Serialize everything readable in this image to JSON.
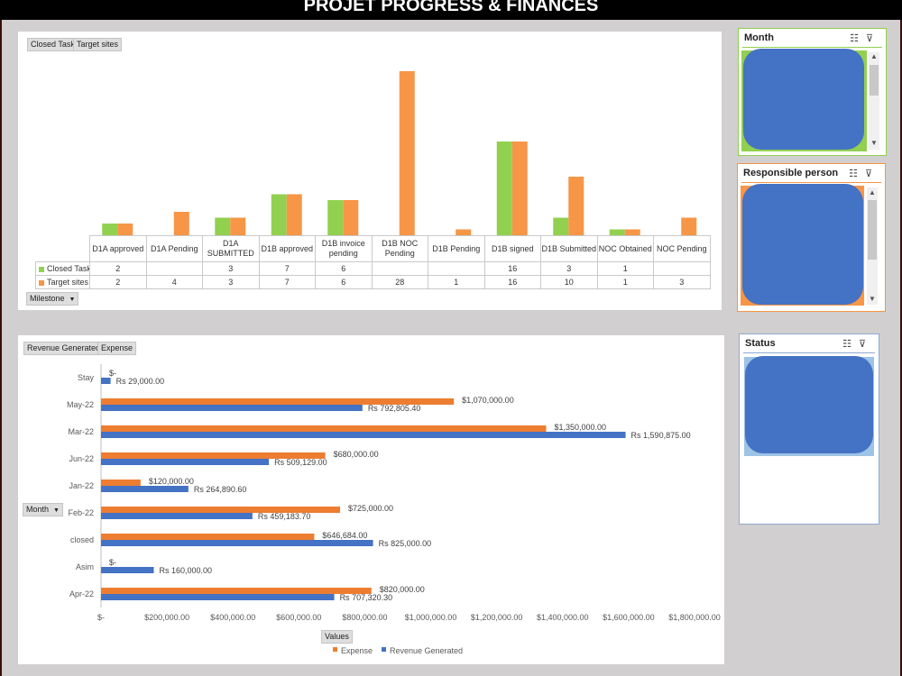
{
  "title": "PROJET PROGRESS & FINANCES",
  "colors": {
    "closed": "#92d050",
    "target": "#f79646",
    "expense": "#ed7d31",
    "revenue": "#4472c4",
    "slicer_item": "#4472c4"
  },
  "top_panel": {
    "field_buttons": [
      "Closed Task",
      "Target sites"
    ],
    "axis_button": "Milestone",
    "series_labels": [
      "Closed Task",
      "Target sites"
    ]
  },
  "bottom_panel": {
    "field_buttons": [
      "Revenue Generated",
      "Expense"
    ],
    "axis_button": "Month",
    "values_button": "Values",
    "legend": [
      "Expense",
      "Revenue Generated"
    ]
  },
  "slicers": {
    "month": {
      "title": "Month",
      "icons": [
        "multi-select-icon",
        "clear-filter-icon"
      ]
    },
    "responsible": {
      "title": "Responsible person",
      "icons": [
        "multi-select-icon",
        "clear-filter-icon"
      ]
    },
    "status": {
      "title": "Status",
      "icons": [
        "multi-select-icon",
        "clear-filter-icon"
      ]
    }
  },
  "chart_data": [
    {
      "type": "bar",
      "title": "",
      "categories": [
        "D1A approved",
        "D1A Pending",
        "D1A SUBMITTED",
        "D1B approved",
        "D1B invoice pending",
        "D1B NOC Pending",
        "D1B Pending",
        "D1B signed",
        "D1B Submitted",
        "NOC Obtained",
        "NOC Pending"
      ],
      "series": [
        {
          "name": "Closed Task",
          "values": [
            2,
            null,
            3,
            7,
            6,
            null,
            null,
            16,
            3,
            1,
            null
          ]
        },
        {
          "name": "Target sites",
          "values": [
            2,
            4,
            3,
            7,
            6,
            28,
            1,
            16,
            10,
            1,
            3
          ]
        }
      ],
      "ylim": [
        0,
        28
      ],
      "grid": false,
      "data_table": true
    },
    {
      "type": "bar",
      "orientation": "horizontal",
      "title": "",
      "xlabel": "Values",
      "ylabel": "Month",
      "categories": [
        "Stay",
        "May-22",
        "Mar-22",
        "Jun-22",
        "Jan-22",
        "Feb-22",
        "closed",
        "Asim",
        "Apr-22"
      ],
      "series": [
        {
          "name": "Expense",
          "values": [
            0,
            1070000,
            1350000,
            680000,
            120000,
            725000,
            646684,
            0,
            820000
          ],
          "labels": [
            "$-",
            "$1,070,000.00",
            "$1,350,000.00",
            "$680,000.00",
            "$120,000.00",
            "$725,000.00",
            "$646,684.00",
            "$-",
            "$820,000.00"
          ]
        },
        {
          "name": "Revenue Generated",
          "values": [
            29000,
            792805.4,
            1590875,
            509129,
            264890.6,
            459183.7,
            825000,
            160000,
            707320.3
          ],
          "labels": [
            "Rs 29,000.00",
            "Rs 792,805.40",
            "Rs 1,590,875.00",
            "Rs 509,129.00",
            "Rs 264,890.60",
            "Rs 459,183.70",
            "Rs 825,000.00",
            "Rs 160,000.00",
            "Rs 707,320.30"
          ]
        }
      ],
      "xlim": [
        0,
        1800000
      ],
      "xticks": [
        "$-",
        "$200,000.00",
        "$400,000.00",
        "$600,000.00",
        "$800,000.00",
        "$1,000,000.00",
        "$1,200,000.00",
        "$1,400,000.00",
        "$1,600,000.00",
        "$1,800,000.00"
      ],
      "legend": "bottom",
      "grid": false
    }
  ]
}
